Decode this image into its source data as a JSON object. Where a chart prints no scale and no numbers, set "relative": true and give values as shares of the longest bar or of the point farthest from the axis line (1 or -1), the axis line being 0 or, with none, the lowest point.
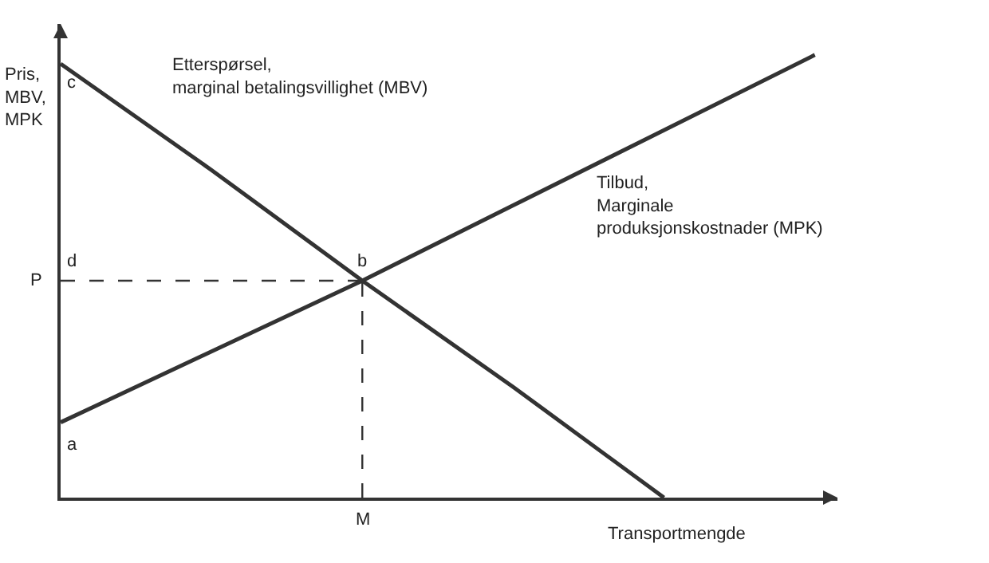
{
  "chart_data": {
    "type": "line",
    "relative": true,
    "xlabel": "Transportmengde",
    "ylabel": "Pris,\nMBV,\nMPK",
    "categories": [
      null,
      null,
      null,
      null,
      null,
      null
    ],
    "series": [
      {
        "name": "Etterspørsel,\nmarginal betalingsvillighet (MBV)",
        "color": "#333333",
        "values": [
          0.98,
          0.74,
          0.49,
          0.25,
          0,
          null
        ]
      },
      {
        "name": "Tilbud,\nMarginale\nproduksjonskostnader (MPK)",
        "color": "#333333",
        "values": [
          0.17,
          0.33,
          0.49,
          0.66,
          0.83,
          1.0
        ]
      }
    ],
    "ref_lines": [
      {
        "axis": "y",
        "value": 0.49,
        "label": "P",
        "line_style": "dashed",
        "color": "#333333"
      }
    ],
    "annotations": [
      {
        "text": "a",
        "y": 0.17
      },
      "b",
      "M",
      {
        "text": "c",
        "y": 0.98
      },
      {
        "text": "d",
        "y": 0.49
      }
    ],
    "legend": false,
    "marker": "none",
    "line_style": "solid"
  }
}
